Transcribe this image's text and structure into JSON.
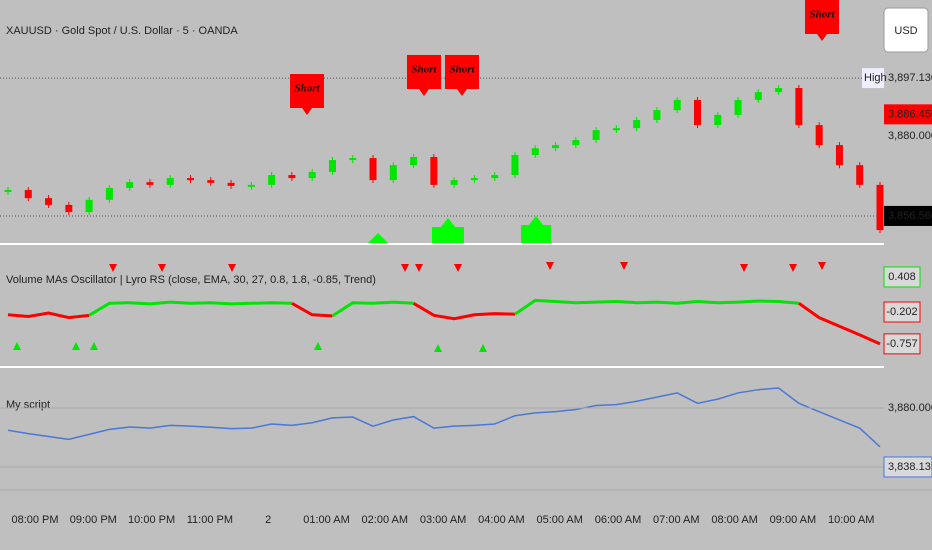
{
  "header": {
    "symbol": "XAUUSD · Gold Spot / U.S. Dollar · 5 · OANDA",
    "currency": "USD"
  },
  "price_pane": {
    "ylim": [
      3848.6,
      3920.1
    ],
    "closes": [
      3864.2,
      3861.8,
      3859.8,
      3857.7,
      3861.3,
      3864.8,
      3866.5,
      3865.7,
      3867.7,
      3867.1,
      3866.3,
      3865.4,
      3865.7,
      3868.6,
      3867.7,
      3869.5,
      3873.0,
      3873.6,
      3867.1,
      3871.5,
      3873.9,
      3865.7,
      3867.1,
      3867.7,
      3868.6,
      3874.5,
      3876.5,
      3877.4,
      3878.9,
      3881.8,
      3882.4,
      3884.8,
      3887.7,
      3890.7,
      3883.3,
      3886.3,
      3890.7,
      3893.0,
      3894.2,
      3883.3,
      3877.4,
      3871.5,
      3865.7,
      3852.4
    ],
    "price_labels": [
      {
        "value": 3897.13,
        "label": "3,897.130"
      },
      {
        "value": 3886.455,
        "label": "3,886.455"
      },
      {
        "value": 3880,
        "label": "3,880.000"
      },
      {
        "value": 3856.56,
        "label": "3,856.560"
      }
    ],
    "high_tag": "High",
    "signals": [
      "Short",
      "Short",
      "Short",
      "Short"
    ]
  },
  "oscillator_pane": {
    "title": "Volume MAs Oscillator | Lyro RS (close, EMA, 30, 27, 0.8, 1.8, -0.85, Trend)",
    "ylim": [
      -1.125,
      0.965
    ],
    "threshold": -0.202,
    "values": [
      -0.25,
      -0.28,
      -0.22,
      -0.3,
      -0.26,
      -0.05,
      -0.04,
      -0.06,
      -0.03,
      -0.05,
      -0.04,
      -0.06,
      -0.05,
      -0.04,
      -0.05,
      -0.25,
      -0.27,
      -0.04,
      -0.05,
      -0.03,
      -0.05,
      -0.26,
      -0.32,
      -0.25,
      -0.23,
      -0.24,
      0.0,
      -0.02,
      -0.04,
      -0.03,
      -0.02,
      -0.04,
      -0.03,
      -0.05,
      -0.02,
      -0.04,
      -0.03,
      -0.01,
      -0.02,
      -0.05,
      -0.3,
      -0.45,
      -0.6,
      -0.757
    ],
    "value_labels": [
      {
        "value": 0.408,
        "label": "0.408"
      },
      {
        "value": -0.202,
        "label": "-0.202"
      },
      {
        "value": -0.757,
        "label": "-0.757"
      }
    ]
  },
  "script_pane": {
    "title": "My script",
    "ylim": [
      3823.2,
      3908.4
    ],
    "price_labels": [
      {
        "value": 3880,
        "label": "3,880.000"
      },
      {
        "value": 3838.135,
        "label": "3,838.135"
      }
    ]
  },
  "time_axis": [
    "08:00 PM",
    "09:00 PM",
    "10:00 PM",
    "11:00 PM",
    "2",
    "01:00 AM",
    "02:00 AM",
    "03:00 AM",
    "04:00 AM",
    "05:00 AM",
    "06:00 AM",
    "07:00 AM",
    "08:00 AM",
    "09:00 AM",
    "10:00 AM"
  ]
}
